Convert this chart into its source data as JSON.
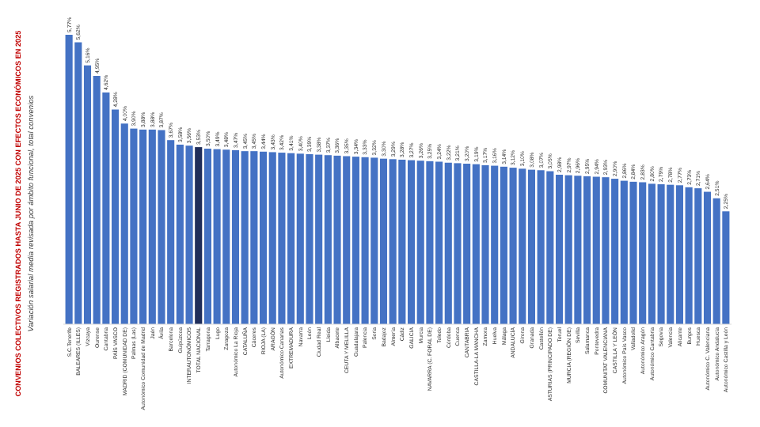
{
  "chart_data": {
    "type": "bar",
    "title": "CONVENIOS COLECTIVOS REGISTRADOS HASTA JUNIO DE 2025 CON EFECTOS ECONÓMICOS EN 2025",
    "subtitle": "Variación salarial media revisada por ámbito funcional, total convenios",
    "categories": [
      "S.C.Tenerife",
      "BALEARES (ILLES)",
      "Vizcaya",
      "Ourense",
      "Cantabria",
      "PAÍS VASCO",
      "MADRID (COMUNIDAD DE)",
      "Palmas (Las)",
      "Autonómico Comunidad de Madrid",
      "Jaén",
      "Ávila",
      "Barcelona",
      "Guipúzcoa",
      "INTERAUTONÓMICOS",
      "TOTAL NACIONAL",
      "Tarragona",
      "Lugo",
      "Zaragoza",
      "Autonómico La Rioja",
      "CATALUÑA",
      "Cáceres",
      "RIOJA (LA)",
      "ARAGÓN",
      "Autonómico Canarias",
      "EXTREMADURA",
      "Navarra",
      "León",
      "Ciudad Real",
      "Lleida",
      "Albacete",
      "CEUTA Y MELILLA",
      "Guadalajara",
      "Palencia",
      "Soria",
      "Badajoz",
      "Almería",
      "Cádiz",
      "GALICIA",
      "Murcia",
      "NAVARRA (C. FORAL DE)",
      "Toledo",
      "Córdoba",
      "Cuenca",
      "CANTABRIA",
      "CASTILLA-LA MANCHA",
      "Zamora",
      "Huelva",
      "Málaga",
      "ANDALUCÍA",
      "Girona",
      "Granada",
      "Castellón",
      "ASTURIAS (PRINCIPADO DE)",
      "Teruel",
      "MURCIA (REGIÓN DE)",
      "Sevilla",
      "Salamanca",
      "Pontevedra",
      "COMUNITAT VALENCIANA",
      "CASTILLA Y LEÓN",
      "Autonómico País Vasco",
      "Valladolid",
      "Autonómico Aragón",
      "Autonómico Cantabria",
      "Segovia",
      "Valencia",
      "Alicante",
      "Burgos",
      "Huesca",
      "Autonómico C. Valenciana",
      "Autonómico Andalucía",
      "Autonómico Castilla y León"
    ],
    "values": [
      5.77,
      5.62,
      5.16,
      4.95,
      4.62,
      4.28,
      4.0,
      3.9,
      3.88,
      3.88,
      3.87,
      3.67,
      3.58,
      3.56,
      3.53,
      3.5,
      3.49,
      3.48,
      3.47,
      3.45,
      3.45,
      3.44,
      3.43,
      3.42,
      3.41,
      3.4,
      3.39,
      3.38,
      3.37,
      3.36,
      3.35,
      3.34,
      3.33,
      3.32,
      3.3,
      3.29,
      3.28,
      3.27,
      3.26,
      3.25,
      3.24,
      3.22,
      3.21,
      3.2,
      3.19,
      3.17,
      3.16,
      3.14,
      3.12,
      3.1,
      3.08,
      3.07,
      3.05,
      2.98,
      2.97,
      2.96,
      2.95,
      2.94,
      2.93,
      2.9,
      2.86,
      2.84,
      2.83,
      2.8,
      2.79,
      2.78,
      2.77,
      2.73,
      2.71,
      2.64,
      2.51,
      2.25
    ],
    "value_labels": [
      "5,77%",
      "5,62%",
      "5,16%",
      "4,95%",
      "4,62%",
      "4,28%",
      "4,00%",
      "3,90%",
      "3,88%",
      "3,88%",
      "3,87%",
      "3,67%",
      "3,58%",
      "3,56%",
      "3,53%",
      "3,50%",
      "3,49%",
      "3,48%",
      "3,47%",
      "3,45%",
      "3,45%",
      "3,44%",
      "3,43%",
      "3,42%",
      "3,41%",
      "3,40%",
      "3,39%",
      "3,38%",
      "3,37%",
      "3,36%",
      "3,35%",
      "3,34%",
      "3,33%",
      "3,32%",
      "3,30%",
      "3,29%",
      "3,28%",
      "3,27%",
      "3,26%",
      "3,25%",
      "3,24%",
      "3,22%",
      "3,21%",
      "3,20%",
      "3,19%",
      "3,17%",
      "3,16%",
      "3,14%",
      "3,12%",
      "3,10%",
      "3,08%",
      "3,07%",
      "3,05%",
      "2,98%",
      "2,97%",
      "2,96%",
      "2,95%",
      "2,94%",
      "2,93%",
      "2,90%",
      "2,86%",
      "2,84%",
      "2,83%",
      "2,80%",
      "2,79%",
      "2,78%",
      "2,77%",
      "2,73%",
      "2,71%",
      "2,64%",
      "2,51%",
      "2,25%"
    ],
    "colors": [
      "#4472c4",
      "#4472c4",
      "#4472c4",
      "#4472c4",
      "#4472c4",
      "#4472c4",
      "#4472c4",
      "#4472c4",
      "#4472c4",
      "#4472c4",
      "#4472c4",
      "#4472c4",
      "#4472c4",
      "#4472c4",
      "#1f2d5a",
      "#4472c4",
      "#4472c4",
      "#4472c4",
      "#4472c4",
      "#4472c4",
      "#4472c4",
      "#4472c4",
      "#4472c4",
      "#4472c4",
      "#4472c4",
      "#4472c4",
      "#4472c4",
      "#4472c4",
      "#4472c4",
      "#4472c4",
      "#4472c4",
      "#4472c4",
      "#4472c4",
      "#4472c4",
      "#4472c4",
      "#4472c4",
      "#4472c4",
      "#4472c4",
      "#4472c4",
      "#4472c4",
      "#4472c4",
      "#4472c4",
      "#4472c4",
      "#4472c4",
      "#4472c4",
      "#4472c4",
      "#4472c4",
      "#4472c4",
      "#4472c4",
      "#4472c4",
      "#4472c4",
      "#4472c4",
      "#4472c4",
      "#4472c4",
      "#4472c4",
      "#4472c4",
      "#4472c4",
      "#4472c4",
      "#4472c4",
      "#4472c4",
      "#4472c4",
      "#4472c4",
      "#4472c4",
      "#4472c4",
      "#4472c4",
      "#4472c4",
      "#4472c4",
      "#4472c4",
      "#4472c4",
      "#4472c4",
      "#4472c4",
      "#4472c4"
    ]
  }
}
